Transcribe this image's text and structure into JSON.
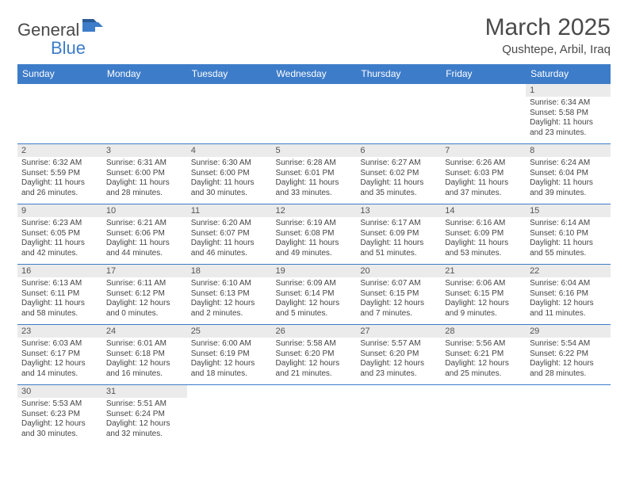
{
  "logo": {
    "text1": "General",
    "text2": "Blue"
  },
  "title": "March 2025",
  "location": "Qushtepe, Arbil, Iraq",
  "colors": {
    "header_bg": "#3d7cc9",
    "header_text": "#ffffff",
    "daynum_bg": "#ebebeb",
    "border": "#3d7cc9",
    "text": "#444444",
    "page_bg": "#ffffff"
  },
  "day_names": [
    "Sunday",
    "Monday",
    "Tuesday",
    "Wednesday",
    "Thursday",
    "Friday",
    "Saturday"
  ],
  "weeks": [
    [
      {
        "n": "",
        "sunrise": "",
        "sunset": "",
        "daylight": ""
      },
      {
        "n": "",
        "sunrise": "",
        "sunset": "",
        "daylight": ""
      },
      {
        "n": "",
        "sunrise": "",
        "sunset": "",
        "daylight": ""
      },
      {
        "n": "",
        "sunrise": "",
        "sunset": "",
        "daylight": ""
      },
      {
        "n": "",
        "sunrise": "",
        "sunset": "",
        "daylight": ""
      },
      {
        "n": "",
        "sunrise": "",
        "sunset": "",
        "daylight": ""
      },
      {
        "n": "1",
        "sunrise": "Sunrise: 6:34 AM",
        "sunset": "Sunset: 5:58 PM",
        "daylight": "Daylight: 11 hours and 23 minutes."
      }
    ],
    [
      {
        "n": "2",
        "sunrise": "Sunrise: 6:32 AM",
        "sunset": "Sunset: 5:59 PM",
        "daylight": "Daylight: 11 hours and 26 minutes."
      },
      {
        "n": "3",
        "sunrise": "Sunrise: 6:31 AM",
        "sunset": "Sunset: 6:00 PM",
        "daylight": "Daylight: 11 hours and 28 minutes."
      },
      {
        "n": "4",
        "sunrise": "Sunrise: 6:30 AM",
        "sunset": "Sunset: 6:00 PM",
        "daylight": "Daylight: 11 hours and 30 minutes."
      },
      {
        "n": "5",
        "sunrise": "Sunrise: 6:28 AM",
        "sunset": "Sunset: 6:01 PM",
        "daylight": "Daylight: 11 hours and 33 minutes."
      },
      {
        "n": "6",
        "sunrise": "Sunrise: 6:27 AM",
        "sunset": "Sunset: 6:02 PM",
        "daylight": "Daylight: 11 hours and 35 minutes."
      },
      {
        "n": "7",
        "sunrise": "Sunrise: 6:26 AM",
        "sunset": "Sunset: 6:03 PM",
        "daylight": "Daylight: 11 hours and 37 minutes."
      },
      {
        "n": "8",
        "sunrise": "Sunrise: 6:24 AM",
        "sunset": "Sunset: 6:04 PM",
        "daylight": "Daylight: 11 hours and 39 minutes."
      }
    ],
    [
      {
        "n": "9",
        "sunrise": "Sunrise: 6:23 AM",
        "sunset": "Sunset: 6:05 PM",
        "daylight": "Daylight: 11 hours and 42 minutes."
      },
      {
        "n": "10",
        "sunrise": "Sunrise: 6:21 AM",
        "sunset": "Sunset: 6:06 PM",
        "daylight": "Daylight: 11 hours and 44 minutes."
      },
      {
        "n": "11",
        "sunrise": "Sunrise: 6:20 AM",
        "sunset": "Sunset: 6:07 PM",
        "daylight": "Daylight: 11 hours and 46 minutes."
      },
      {
        "n": "12",
        "sunrise": "Sunrise: 6:19 AM",
        "sunset": "Sunset: 6:08 PM",
        "daylight": "Daylight: 11 hours and 49 minutes."
      },
      {
        "n": "13",
        "sunrise": "Sunrise: 6:17 AM",
        "sunset": "Sunset: 6:09 PM",
        "daylight": "Daylight: 11 hours and 51 minutes."
      },
      {
        "n": "14",
        "sunrise": "Sunrise: 6:16 AM",
        "sunset": "Sunset: 6:09 PM",
        "daylight": "Daylight: 11 hours and 53 minutes."
      },
      {
        "n": "15",
        "sunrise": "Sunrise: 6:14 AM",
        "sunset": "Sunset: 6:10 PM",
        "daylight": "Daylight: 11 hours and 55 minutes."
      }
    ],
    [
      {
        "n": "16",
        "sunrise": "Sunrise: 6:13 AM",
        "sunset": "Sunset: 6:11 PM",
        "daylight": "Daylight: 11 hours and 58 minutes."
      },
      {
        "n": "17",
        "sunrise": "Sunrise: 6:11 AM",
        "sunset": "Sunset: 6:12 PM",
        "daylight": "Daylight: 12 hours and 0 minutes."
      },
      {
        "n": "18",
        "sunrise": "Sunrise: 6:10 AM",
        "sunset": "Sunset: 6:13 PM",
        "daylight": "Daylight: 12 hours and 2 minutes."
      },
      {
        "n": "19",
        "sunrise": "Sunrise: 6:09 AM",
        "sunset": "Sunset: 6:14 PM",
        "daylight": "Daylight: 12 hours and 5 minutes."
      },
      {
        "n": "20",
        "sunrise": "Sunrise: 6:07 AM",
        "sunset": "Sunset: 6:15 PM",
        "daylight": "Daylight: 12 hours and 7 minutes."
      },
      {
        "n": "21",
        "sunrise": "Sunrise: 6:06 AM",
        "sunset": "Sunset: 6:15 PM",
        "daylight": "Daylight: 12 hours and 9 minutes."
      },
      {
        "n": "22",
        "sunrise": "Sunrise: 6:04 AM",
        "sunset": "Sunset: 6:16 PM",
        "daylight": "Daylight: 12 hours and 11 minutes."
      }
    ],
    [
      {
        "n": "23",
        "sunrise": "Sunrise: 6:03 AM",
        "sunset": "Sunset: 6:17 PM",
        "daylight": "Daylight: 12 hours and 14 minutes."
      },
      {
        "n": "24",
        "sunrise": "Sunrise: 6:01 AM",
        "sunset": "Sunset: 6:18 PM",
        "daylight": "Daylight: 12 hours and 16 minutes."
      },
      {
        "n": "25",
        "sunrise": "Sunrise: 6:00 AM",
        "sunset": "Sunset: 6:19 PM",
        "daylight": "Daylight: 12 hours and 18 minutes."
      },
      {
        "n": "26",
        "sunrise": "Sunrise: 5:58 AM",
        "sunset": "Sunset: 6:20 PM",
        "daylight": "Daylight: 12 hours and 21 minutes."
      },
      {
        "n": "27",
        "sunrise": "Sunrise: 5:57 AM",
        "sunset": "Sunset: 6:20 PM",
        "daylight": "Daylight: 12 hours and 23 minutes."
      },
      {
        "n": "28",
        "sunrise": "Sunrise: 5:56 AM",
        "sunset": "Sunset: 6:21 PM",
        "daylight": "Daylight: 12 hours and 25 minutes."
      },
      {
        "n": "29",
        "sunrise": "Sunrise: 5:54 AM",
        "sunset": "Sunset: 6:22 PM",
        "daylight": "Daylight: 12 hours and 28 minutes."
      }
    ],
    [
      {
        "n": "30",
        "sunrise": "Sunrise: 5:53 AM",
        "sunset": "Sunset: 6:23 PM",
        "daylight": "Daylight: 12 hours and 30 minutes."
      },
      {
        "n": "31",
        "sunrise": "Sunrise: 5:51 AM",
        "sunset": "Sunset: 6:24 PM",
        "daylight": "Daylight: 12 hours and 32 minutes."
      },
      {
        "n": "",
        "sunrise": "",
        "sunset": "",
        "daylight": ""
      },
      {
        "n": "",
        "sunrise": "",
        "sunset": "",
        "daylight": ""
      },
      {
        "n": "",
        "sunrise": "",
        "sunset": "",
        "daylight": ""
      },
      {
        "n": "",
        "sunrise": "",
        "sunset": "",
        "daylight": ""
      },
      {
        "n": "",
        "sunrise": "",
        "sunset": "",
        "daylight": ""
      }
    ]
  ]
}
